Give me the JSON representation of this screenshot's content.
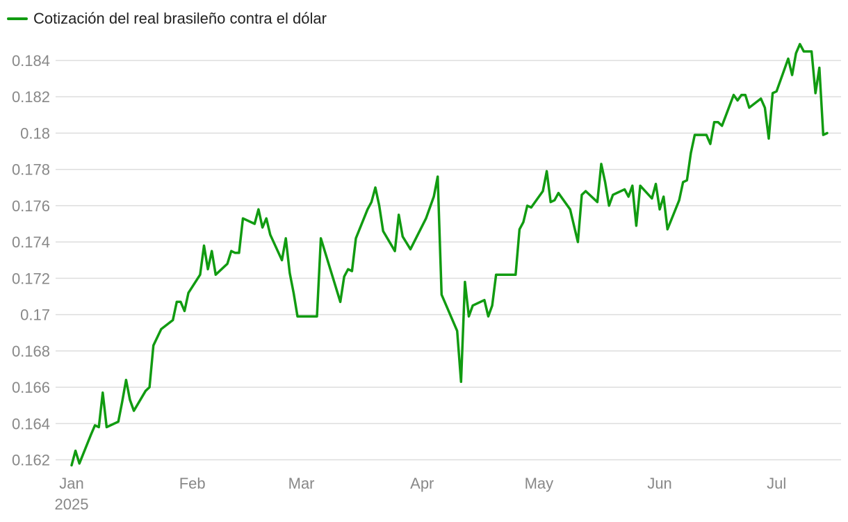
{
  "chart_data": {
    "type": "line",
    "series": [
      {
        "name": "Cotización del real brasileño contra el dólar",
        "color": "#119b11",
        "points": [
          [
            "2025-01-01",
            0.1617
          ],
          [
            "2025-01-02",
            0.1625
          ],
          [
            "2025-01-03",
            0.1618
          ],
          [
            "2025-01-06",
            0.1634
          ],
          [
            "2025-01-07",
            0.1639
          ],
          [
            "2025-01-08",
            0.1638
          ],
          [
            "2025-01-09",
            0.1657
          ],
          [
            "2025-01-10",
            0.1638
          ],
          [
            "2025-01-13",
            0.1641
          ],
          [
            "2025-01-14",
            0.1652
          ],
          [
            "2025-01-15",
            0.1664
          ],
          [
            "2025-01-16",
            0.1653
          ],
          [
            "2025-01-17",
            0.1647
          ],
          [
            "2025-01-20",
            0.1658
          ],
          [
            "2025-01-21",
            0.166
          ],
          [
            "2025-01-22",
            0.1683
          ],
          [
            "2025-01-24",
            0.1692
          ],
          [
            "2025-01-27",
            0.1697
          ],
          [
            "2025-01-28",
            0.1707
          ],
          [
            "2025-01-29",
            0.1707
          ],
          [
            "2025-01-30",
            0.1702
          ],
          [
            "2025-01-31",
            0.1712
          ],
          [
            "2025-02-03",
            0.1722
          ],
          [
            "2025-02-04",
            0.1738
          ],
          [
            "2025-02-05",
            0.1725
          ],
          [
            "2025-02-06",
            0.1735
          ],
          [
            "2025-02-07",
            0.1722
          ],
          [
            "2025-02-10",
            0.1728
          ],
          [
            "2025-02-11",
            0.1735
          ],
          [
            "2025-02-12",
            0.1734
          ],
          [
            "2025-02-13",
            0.1734
          ],
          [
            "2025-02-14",
            0.1753
          ],
          [
            "2025-02-17",
            0.175
          ],
          [
            "2025-02-18",
            0.1758
          ],
          [
            "2025-02-19",
            0.1748
          ],
          [
            "2025-02-20",
            0.1753
          ],
          [
            "2025-02-21",
            0.1744
          ],
          [
            "2025-02-24",
            0.173
          ],
          [
            "2025-02-25",
            0.1742
          ],
          [
            "2025-02-26",
            0.1723
          ],
          [
            "2025-02-27",
            0.1712
          ],
          [
            "2025-02-28",
            0.1699
          ],
          [
            "2025-03-05",
            0.1699
          ],
          [
            "2025-03-06",
            0.1742
          ],
          [
            "2025-03-11",
            0.1707
          ],
          [
            "2025-03-12",
            0.1721
          ],
          [
            "2025-03-13",
            0.1725
          ],
          [
            "2025-03-14",
            0.1724
          ],
          [
            "2025-03-15",
            0.1742
          ],
          [
            "2025-03-18",
            0.1758
          ],
          [
            "2025-03-19",
            0.1762
          ],
          [
            "2025-03-20",
            0.177
          ],
          [
            "2025-03-21",
            0.176
          ],
          [
            "2025-03-22",
            0.1746
          ],
          [
            "2025-03-25",
            0.1735
          ],
          [
            "2025-03-26",
            0.1755
          ],
          [
            "2025-03-27",
            0.1743
          ],
          [
            "2025-03-29",
            0.1736
          ],
          [
            "2025-04-02",
            0.1753
          ],
          [
            "2025-04-04",
            0.1765
          ],
          [
            "2025-04-05",
            0.1776
          ],
          [
            "2025-04-06",
            0.1711
          ],
          [
            "2025-04-10",
            0.1691
          ],
          [
            "2025-04-11",
            0.1663
          ],
          [
            "2025-04-12",
            0.1718
          ],
          [
            "2025-04-13",
            0.1699
          ],
          [
            "2025-04-14",
            0.1705
          ],
          [
            "2025-04-17",
            0.1708
          ],
          [
            "2025-04-18",
            0.1699
          ],
          [
            "2025-04-19",
            0.1705
          ],
          [
            "2025-04-20",
            0.1722
          ],
          [
            "2025-04-25",
            0.1722
          ],
          [
            "2025-04-26",
            0.1747
          ],
          [
            "2025-04-27",
            0.1751
          ],
          [
            "2025-04-28",
            0.176
          ],
          [
            "2025-04-29",
            0.1759
          ],
          [
            "2025-05-02",
            0.1768
          ],
          [
            "2025-05-03",
            0.1779
          ],
          [
            "2025-05-04",
            0.1762
          ],
          [
            "2025-05-05",
            0.1763
          ],
          [
            "2025-05-06",
            0.1767
          ],
          [
            "2025-05-09",
            0.1758
          ],
          [
            "2025-05-11",
            0.174
          ],
          [
            "2025-05-12",
            0.1766
          ],
          [
            "2025-05-13",
            0.1768
          ],
          [
            "2025-05-16",
            0.1762
          ],
          [
            "2025-05-17",
            0.1783
          ],
          [
            "2025-05-18",
            0.1773
          ],
          [
            "2025-05-19",
            0.176
          ],
          [
            "2025-05-20",
            0.1766
          ],
          [
            "2025-05-23",
            0.1769
          ],
          [
            "2025-05-24",
            0.1765
          ],
          [
            "2025-05-25",
            0.1771
          ],
          [
            "2025-05-26",
            0.1749
          ],
          [
            "2025-05-27",
            0.1771
          ],
          [
            "2025-05-30",
            0.1764
          ],
          [
            "2025-05-31",
            0.1772
          ],
          [
            "2025-06-01",
            0.1758
          ],
          [
            "2025-06-02",
            0.1765
          ],
          [
            "2025-06-03",
            0.1747
          ],
          [
            "2025-06-06",
            0.1763
          ],
          [
            "2025-06-07",
            0.1773
          ],
          [
            "2025-06-08",
            0.1774
          ],
          [
            "2025-06-09",
            0.1789
          ],
          [
            "2025-06-10",
            0.1799
          ],
          [
            "2025-06-13",
            0.1799
          ],
          [
            "2025-06-14",
            0.1794
          ],
          [
            "2025-06-15",
            0.1806
          ],
          [
            "2025-06-16",
            0.1806
          ],
          [
            "2025-06-17",
            0.1804
          ],
          [
            "2025-06-20",
            0.1821
          ],
          [
            "2025-06-21",
            0.1818
          ],
          [
            "2025-06-22",
            0.1821
          ],
          [
            "2025-06-23",
            0.1821
          ],
          [
            "2025-06-24",
            0.1814
          ],
          [
            "2025-06-27",
            0.1819
          ],
          [
            "2025-06-28",
            0.1814
          ],
          [
            "2025-06-29",
            0.1797
          ],
          [
            "2025-06-30",
            0.1822
          ],
          [
            "2025-07-01",
            0.1823
          ],
          [
            "2025-07-04",
            0.1841
          ],
          [
            "2025-07-05",
            0.1832
          ],
          [
            "2025-07-06",
            0.1844
          ],
          [
            "2025-07-07",
            0.1849
          ],
          [
            "2025-07-08",
            0.1845
          ],
          [
            "2025-07-10",
            0.1845
          ],
          [
            "2025-07-11",
            0.1822
          ],
          [
            "2025-07-12",
            0.1836
          ],
          [
            "2025-07-13",
            0.1799
          ],
          [
            "2025-07-14",
            0.18
          ]
        ]
      }
    ],
    "x_axis": {
      "range": [
        "2025-01-01",
        "2025-07-14"
      ],
      "ticks": [
        {
          "value": "2025-01-01",
          "label": "Jan",
          "year": "2025"
        },
        {
          "value": "2025-02-01",
          "label": "Feb"
        },
        {
          "value": "2025-03-01",
          "label": "Mar"
        },
        {
          "value": "2025-04-01",
          "label": "Apr"
        },
        {
          "value": "2025-05-01",
          "label": "May"
        },
        {
          "value": "2025-06-01",
          "label": "Jun"
        },
        {
          "value": "2025-07-01",
          "label": "Jul"
        }
      ]
    },
    "y_axis": {
      "range": [
        0.1616,
        0.1858
      ],
      "ticks": [
        {
          "value": 0.162,
          "label": "0.162"
        },
        {
          "value": 0.164,
          "label": "0.164"
        },
        {
          "value": 0.166,
          "label": "0.166"
        },
        {
          "value": 0.168,
          "label": "0.168"
        },
        {
          "value": 0.17,
          "label": "0.17"
        },
        {
          "value": 0.172,
          "label": "0.172"
        },
        {
          "value": 0.174,
          "label": "0.174"
        },
        {
          "value": 0.176,
          "label": "0.176"
        },
        {
          "value": 0.178,
          "label": "0.178"
        },
        {
          "value": 0.18,
          "label": "0.18"
        },
        {
          "value": 0.182,
          "label": "0.182"
        },
        {
          "value": 0.184,
          "label": "0.184"
        }
      ]
    },
    "grid": true,
    "legend_position": "top-left"
  }
}
